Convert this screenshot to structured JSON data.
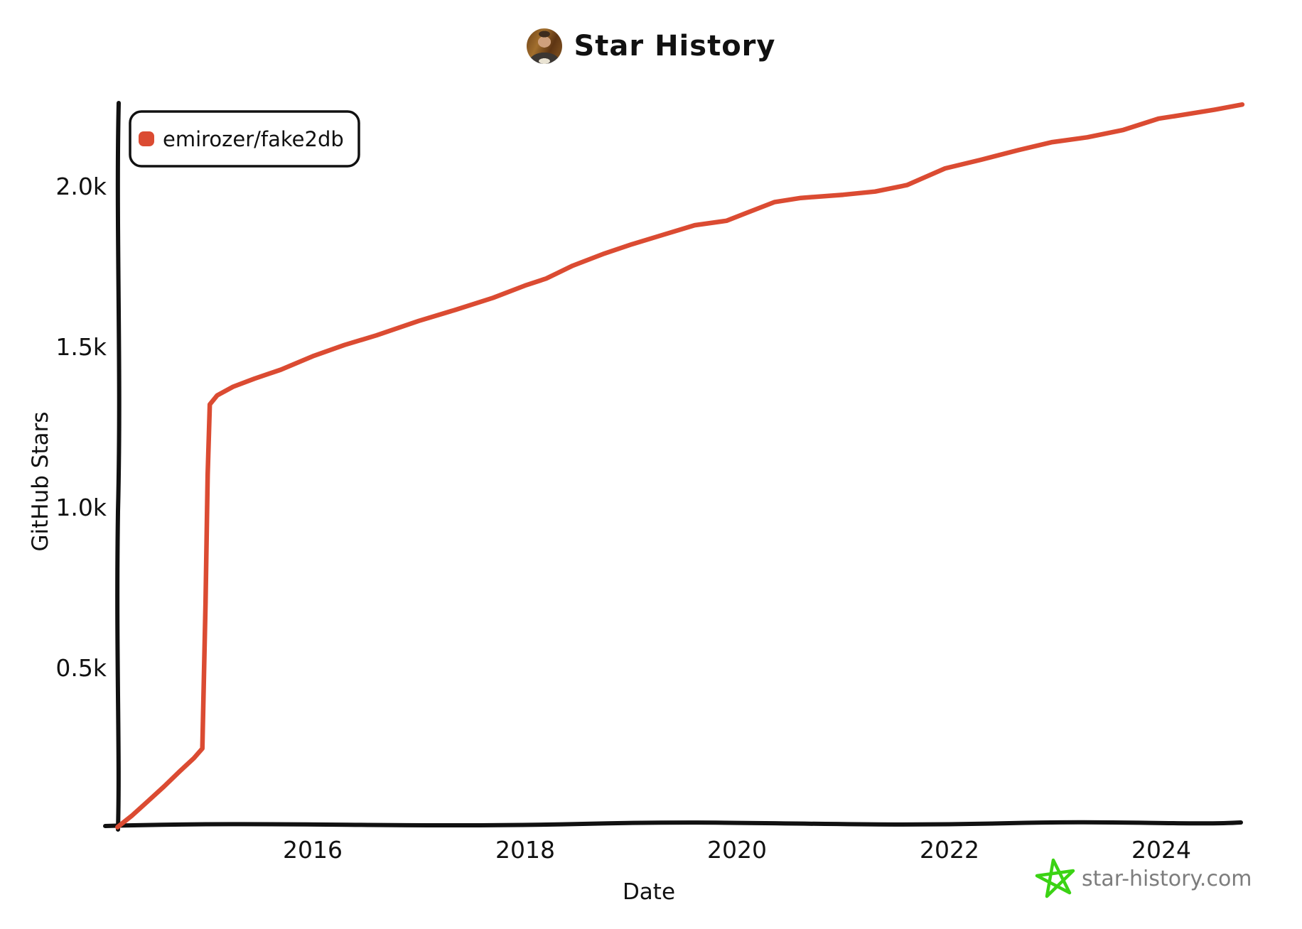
{
  "header": {
    "title": "Star History"
  },
  "footer": {
    "watermark_text": "star-history.com"
  },
  "chart_data": {
    "type": "line",
    "title": "Star History",
    "xlabel": "Date",
    "ylabel": "GitHub Stars",
    "grid": false,
    "legend_position": "top-left",
    "background": "#ffffff",
    "axis_color": "#111111",
    "x_axis": {
      "range": [
        2014.1,
        2024.85
      ],
      "ticks": [
        {
          "label": "2016",
          "value": 2016
        },
        {
          "label": "2018",
          "value": 2018
        },
        {
          "label": "2020",
          "value": 2020
        },
        {
          "label": "2022",
          "value": 2022
        },
        {
          "label": "2024",
          "value": 2024
        }
      ]
    },
    "y_axis": {
      "range": [
        0,
        2300
      ],
      "ticks": [
        {
          "label": "0.5k",
          "value": 500
        },
        {
          "label": "1.0k",
          "value": 1000
        },
        {
          "label": "1.5k",
          "value": 1500
        },
        {
          "label": "2.0k",
          "value": 2000
        }
      ]
    },
    "series": [
      {
        "name": "emirozer/fake2db",
        "color": "#DB4B32",
        "points": [
          [
            2014.16,
            3
          ],
          [
            2014.3,
            40
          ],
          [
            2014.45,
            85
          ],
          [
            2014.6,
            130
          ],
          [
            2014.75,
            178
          ],
          [
            2014.88,
            218
          ],
          [
            2014.96,
            248
          ],
          [
            2014.99,
            700
          ],
          [
            2015.01,
            1100
          ],
          [
            2015.03,
            1320
          ],
          [
            2015.1,
            1348
          ],
          [
            2015.25,
            1375
          ],
          [
            2015.45,
            1400
          ],
          [
            2015.7,
            1428
          ],
          [
            2016.0,
            1470
          ],
          [
            2016.3,
            1505
          ],
          [
            2016.6,
            1535
          ],
          [
            2017.0,
            1580
          ],
          [
            2017.35,
            1615
          ],
          [
            2017.7,
            1652
          ],
          [
            2018.0,
            1690
          ],
          [
            2018.2,
            1712
          ],
          [
            2018.45,
            1752
          ],
          [
            2018.75,
            1790
          ],
          [
            2019.0,
            1818
          ],
          [
            2019.3,
            1848
          ],
          [
            2019.6,
            1878
          ],
          [
            2019.9,
            1892
          ],
          [
            2020.1,
            1918
          ],
          [
            2020.35,
            1950
          ],
          [
            2020.6,
            1963
          ],
          [
            2021.0,
            1973
          ],
          [
            2021.3,
            1983
          ],
          [
            2021.6,
            2003
          ],
          [
            2021.96,
            2055
          ],
          [
            2022.3,
            2082
          ],
          [
            2022.65,
            2112
          ],
          [
            2022.97,
            2137
          ],
          [
            2023.3,
            2152
          ],
          [
            2023.64,
            2175
          ],
          [
            2023.97,
            2210
          ],
          [
            2024.2,
            2222
          ],
          [
            2024.5,
            2238
          ],
          [
            2024.76,
            2254
          ]
        ]
      }
    ]
  }
}
